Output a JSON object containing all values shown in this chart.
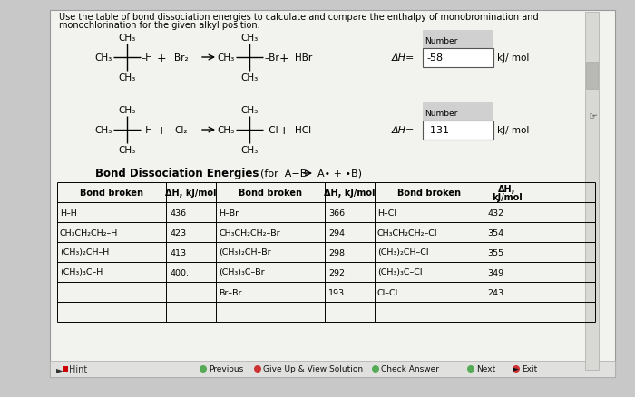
{
  "bg_color": "#c8c8c8",
  "panel_bg": "#f5f5f0",
  "white": "#ffffff",
  "title1": "Use the table of bond dissociation energies to calculate and compare the enthalpy of monobromination and",
  "title2": "monochlorination for the given alkyl position.",
  "r1_dH": "-58",
  "r1_unit": "kJ/ mol",
  "r2_dH": "-131",
  "r2_unit": "kJ/ mol",
  "bde_title": "Bond Dissociation Energies",
  "bde_sub1": "(for  A−B",
  "bde_sub2": "A• + •B)",
  "th": [
    "Bond broken",
    "ΔH, kJ/mol",
    "Bond broken",
    "ΔH, kJ/mol",
    "Bond broken",
    "ΔH,\nkJ/mol"
  ],
  "c1b": [
    "H–H",
    "CH₃CH₂CH₂–H",
    "(CH₃)₂CH–H",
    "(CH₃)₃C–H",
    ""
  ],
  "c1v": [
    "436",
    "423",
    "413",
    "400.",
    ""
  ],
  "c2b": [
    "H–Br",
    "CH₃CH₂CH₂–Br",
    "(CH₃)₂CH–Br",
    "(CH₃)₃C–Br",
    "Br–Br"
  ],
  "c2v": [
    "366",
    "294",
    "298",
    "292",
    "193"
  ],
  "c3b": [
    "H–Cl",
    "CH₃CH₂CH₂–Cl",
    "(CH₃)₂CH–Cl",
    "(CH₃)₃C–Cl",
    "Cl–Cl"
  ],
  "c3v": [
    "432",
    "354",
    "355",
    "349",
    "243"
  ],
  "footer": [
    "►",
    "♥ Hint",
    "Previous",
    "Give Up & View Solution",
    "Check Answer",
    "Next",
    "Exit"
  ]
}
